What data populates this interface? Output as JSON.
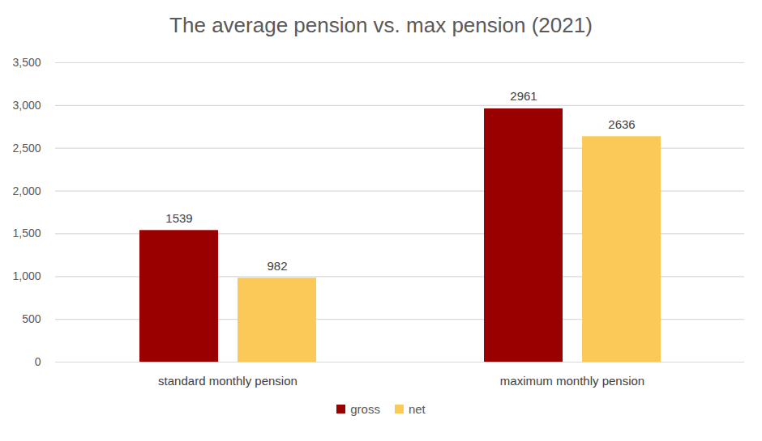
{
  "chart_data": {
    "type": "bar",
    "title": "The average pension vs. max pension (2021)",
    "categories": [
      "standard monthly pension",
      "maximum monthly pension"
    ],
    "series": [
      {
        "name": "gross",
        "color": "#990000",
        "values": [
          1539,
          2961
        ]
      },
      {
        "name": "net",
        "color": "#fbc957",
        "values": [
          982,
          2636
        ]
      }
    ],
    "ylim": [
      0,
      3500
    ],
    "yticks": [
      0,
      500,
      1000,
      1500,
      2000,
      2500,
      3000,
      3500
    ],
    "grid": true,
    "data_labels": true,
    "legend": "bottom"
  }
}
